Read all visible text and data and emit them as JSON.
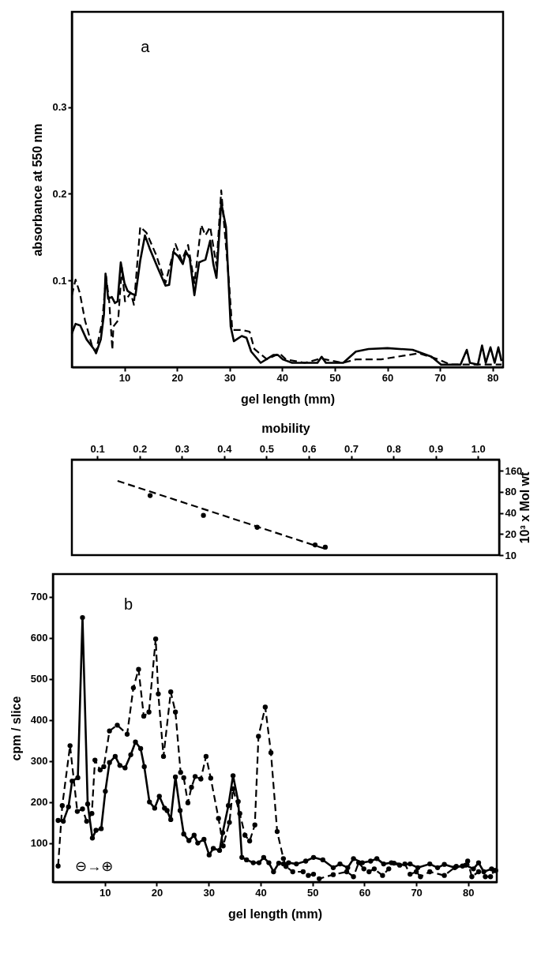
{
  "chart_data": [
    {
      "type": "line",
      "xlabel": "gel length (mm)",
      "ylabel": "absorbance at 550 nm",
      "xlim": [
        0,
        82
      ],
      "ylim": [
        0,
        0.41
      ],
      "xticks": [
        10,
        20,
        30,
        40,
        50,
        60,
        70,
        80
      ],
      "yticks": [
        0.1,
        0.2,
        0.3
      ],
      "annotations": [
        "a"
      ],
      "series": [
        {
          "color": "#000000",
          "line_style": "solid",
          "x": [
            0,
            0.7,
            1.6,
            2.8,
            4.3,
            4.6,
            5.5,
            6.1,
            6.4,
            6.9,
            7.6,
            8.2,
            8.7,
            9.3,
            10,
            10.6,
            11.3,
            12.1,
            13,
            13.9,
            14.8,
            16.3,
            17.8,
            18.5,
            19.3,
            20.2,
            21.1,
            21.7,
            22.4,
            23.3,
            24.2,
            25.4,
            26.3,
            26.9,
            27.5,
            28.4,
            29.3,
            30.2,
            30.8,
            32.3,
            33.2,
            34.1,
            35.9,
            38.3,
            39.2,
            40.1,
            41.9,
            46.7,
            47.5,
            48.3,
            51.6,
            54,
            56.4,
            60,
            64.8,
            68.4,
            70.2,
            73.9,
            75.1,
            75.7,
            77.2,
            78,
            78.7,
            79.6,
            80.4,
            81.1,
            81.7
          ],
          "values": [
            0.039,
            0.05,
            0.048,
            0.032,
            0.02,
            0.016,
            0.032,
            0.061,
            0.108,
            0.079,
            0.081,
            0.074,
            0.076,
            0.121,
            0.097,
            0.088,
            0.085,
            0.083,
            0.123,
            0.152,
            0.137,
            0.115,
            0.094,
            0.095,
            0.133,
            0.128,
            0.119,
            0.133,
            0.126,
            0.083,
            0.121,
            0.124,
            0.146,
            0.119,
            0.103,
            0.19,
            0.162,
            0.047,
            0.03,
            0.036,
            0.034,
            0.018,
            0.005,
            0.014,
            0.014,
            0.009,
            0.005,
            0.005,
            0.012,
            0.005,
            0.005,
            0.018,
            0.021,
            0.022,
            0.02,
            0.012,
            0.003,
            0.003,
            0.02,
            0.005,
            0.003,
            0.025,
            0.005,
            0.023,
            0.005,
            0.023,
            0.007
          ]
        },
        {
          "color": "#000000",
          "line_style": "dashed",
          "x": [
            0,
            0.7,
            1.5,
            2.5,
            4,
            4.6,
            5.8,
            6.5,
            7.1,
            7.7,
            7.9,
            8.8,
            9.5,
            10.1,
            11.2,
            11.8,
            13,
            14.2,
            16,
            17.8,
            19.7,
            20.9,
            22.1,
            23.3,
            24.6,
            25.4,
            26.3,
            27.5,
            28.4,
            29.9,
            30.5,
            32.3,
            33.8,
            34.7,
            37.1,
            39.5,
            40.7,
            44.3,
            47.3,
            51.6,
            54,
            58.8,
            61.8,
            66,
            69.7,
            72,
            81.7
          ],
          "values": [
            0.083,
            0.101,
            0.086,
            0.054,
            0.021,
            0.018,
            0.054,
            0.105,
            0.076,
            0.02,
            0.047,
            0.054,
            0.115,
            0.076,
            0.086,
            0.072,
            0.162,
            0.155,
            0.13,
            0.097,
            0.142,
            0.123,
            0.141,
            0.097,
            0.164,
            0.152,
            0.162,
            0.117,
            0.204,
            0.097,
            0.043,
            0.043,
            0.041,
            0.021,
            0.009,
            0.016,
            0.009,
            0.005,
            0.01,
            0.005,
            0.009,
            0.009,
            0.012,
            0.016,
            0.009,
            0.003,
            0.003
          ]
        }
      ]
    },
    {
      "type": "scatter",
      "xlabel": "mobility",
      "ylabel": "10³ x Mol wt",
      "xlim": [
        0.04,
        1.05
      ],
      "xticks": [
        0.1,
        0.2,
        0.3,
        0.4,
        0.5,
        0.6,
        0.7,
        0.8,
        0.9,
        {
          "value": 1.0,
          "label": "1.0"
        }
      ],
      "ylim": [
        10,
        232
      ],
      "yticks": [
        10,
        20,
        40,
        80,
        160
      ],
      "log": true,
      "series": [
        {
          "color": "#000000",
          "marker": "circle",
          "x": [
            0.225,
            0.351,
            0.478,
            0.615,
            0.639
          ],
          "values": [
            71,
            37,
            25,
            14,
            13
          ]
        },
        {
          "type": "line",
          "color": "#000000",
          "line_style": "dashed",
          "x": [
            0.148,
            0.644
          ],
          "values": [
            115,
            12
          ]
        }
      ]
    },
    {
      "type": "line",
      "xlabel": "gel length (mm)",
      "ylabel": "cpm / slice",
      "xlim": [
        0,
        85.5
      ],
      "ylim": [
        5,
        755
      ],
      "xticks": [
        10,
        20,
        30,
        40,
        50,
        60,
        70,
        80
      ],
      "yticks": [
        100,
        200,
        300,
        400,
        500,
        600,
        700
      ],
      "annotations": [
        "b",
        "⊖→⊕"
      ],
      "marker": "circle",
      "series": [
        {
          "color": "#000000",
          "line_style": "solid",
          "x": [
            1,
            2,
            3,
            3.7,
            4.8,
            5.7,
            6.7,
            7.6,
            8.3,
            9.3,
            10.1,
            10.9,
            12,
            12.9,
            13.9,
            15,
            15.9,
            16.9,
            17.6,
            18.6,
            19.6,
            20.5,
            21.5,
            22,
            22.7,
            23.6,
            24.5,
            25.2,
            26.2,
            27.2,
            27.9,
            29.1,
            30.1,
            30.9,
            32.1,
            32.7,
            33.8,
            34.7,
            35.7,
            36.4,
            37.3,
            38.6,
            39.7,
            40.6,
            41.6,
            42.5,
            43.5,
            44.4,
            45.4,
            46.9,
            48.7,
            50.2,
            52,
            54,
            55.3,
            56.8,
            57.9,
            59.6,
            61.2,
            62.4,
            63.7,
            65.2,
            66.8,
            68.8,
            70.3,
            72.6,
            74.1,
            75.4,
            77.4,
            79.5,
            81,
            82,
            83,
            84.5,
            85.3
          ],
          "values": [
            155,
            153,
            188,
            251,
            259,
            649,
            195,
            112,
            131,
            135,
            226,
            296,
            311,
            289,
            283,
            315,
            346,
            330,
            286,
            200,
            185,
            214,
            185,
            179,
            157,
            261,
            179,
            122,
            106,
            119,
            100,
            109,
            71,
            87,
            82,
            125,
            191,
            264,
            201,
            65,
            59,
            52,
            52,
            65,
            52,
            30,
            51,
            49,
            52,
            49,
            56,
            65,
            59,
            40,
            49,
            40,
            62,
            52,
            56,
            62,
            49,
            52,
            46,
            49,
            40,
            49,
            40,
            48,
            40,
            46,
            37,
            52,
            30,
            37,
            33
          ]
        },
        {
          "color": "#000000",
          "line_style": "dashed",
          "x": [
            1,
            1.8,
            3.3,
            4.7,
            5.7,
            6.5,
            7.5,
            8.1,
            9.1,
            9.8,
            10.9,
            12.4,
            14.3,
            15.5,
            16.5,
            17.5,
            18.5,
            19.8,
            20.3,
            21.3,
            22.7,
            23.6,
            24.6,
            25.2,
            26,
            26.7,
            27.4,
            28.5,
            29.5,
            30.4,
            31.9,
            32.8,
            34,
            34.7,
            36,
            37,
            37.9,
            38.9,
            39.6,
            40.9,
            42,
            43.2,
            44.4,
            44.9,
            46.2,
            48.2,
            49.2,
            50.2,
            51.3,
            54,
            56.6,
            57.9,
            58.9,
            59.9,
            60.9,
            61.9,
            63.5,
            64.7,
            65.7,
            67.8,
            68.8,
            70,
            70.8,
            72.6,
            75.4,
            77.7,
            78.9,
            79.9,
            80.7,
            82,
            83.3,
            84.3,
            85
          ],
          "values": [
            44,
            191,
            337,
            177,
            183,
            153,
            172,
            302,
            278,
            286,
            373,
            387,
            365,
            478,
            523,
            409,
            419,
            597,
            463,
            311,
            468,
            419,
            272,
            259,
            198,
            236,
            262,
            256,
            311,
            258,
            160,
            93,
            150,
            232,
            172,
            119,
            105,
            144,
            360,
            431,
            320,
            128,
            62,
            43,
            30,
            30,
            21,
            24,
            13,
            23,
            30,
            18,
            52,
            37,
            30,
            37,
            21,
            37,
            51,
            49,
            24,
            30,
            18,
            30,
            21,
            43,
            44,
            56,
            18,
            30,
            18,
            18,
            33
          ]
        }
      ]
    }
  ]
}
